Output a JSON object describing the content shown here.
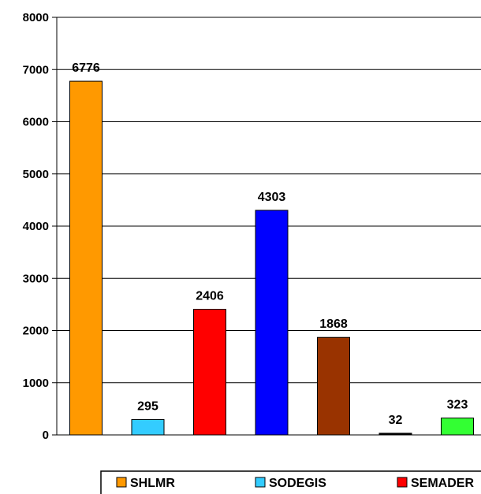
{
  "chart_data": {
    "type": "bar",
    "categories": [
      "SHLMR",
      "SODEGIS",
      "SEMADER",
      "",
      "",
      "",
      ""
    ],
    "values": [
      6776,
      295,
      2406,
      4303,
      1868,
      32,
      323
    ],
    "data_labels": [
      "6776",
      "295",
      "2406",
      "4303",
      "1868",
      "32",
      "323"
    ],
    "colors": [
      "#FF9900",
      "#33CCFF",
      "#FF0000",
      "#0000FF",
      "#993300",
      "#000000",
      "#33FF33"
    ],
    "ylim": [
      0,
      8000
    ],
    "yticks": [
      0,
      1000,
      2000,
      3000,
      4000,
      5000,
      6000,
      7000,
      8000
    ],
    "ytick_labels": [
      "0",
      "1000",
      "2000",
      "3000",
      "4000",
      "5000",
      "6000",
      "7000",
      "8000"
    ],
    "grid": true,
    "legend": {
      "placement": "bottom",
      "entries": [
        {
          "label": "SHLMR",
          "color": "#FF9900"
        },
        {
          "label": "SODEGIS",
          "color": "#33CCFF"
        },
        {
          "label": "SEMADER",
          "color": "#FF0000"
        }
      ]
    }
  }
}
